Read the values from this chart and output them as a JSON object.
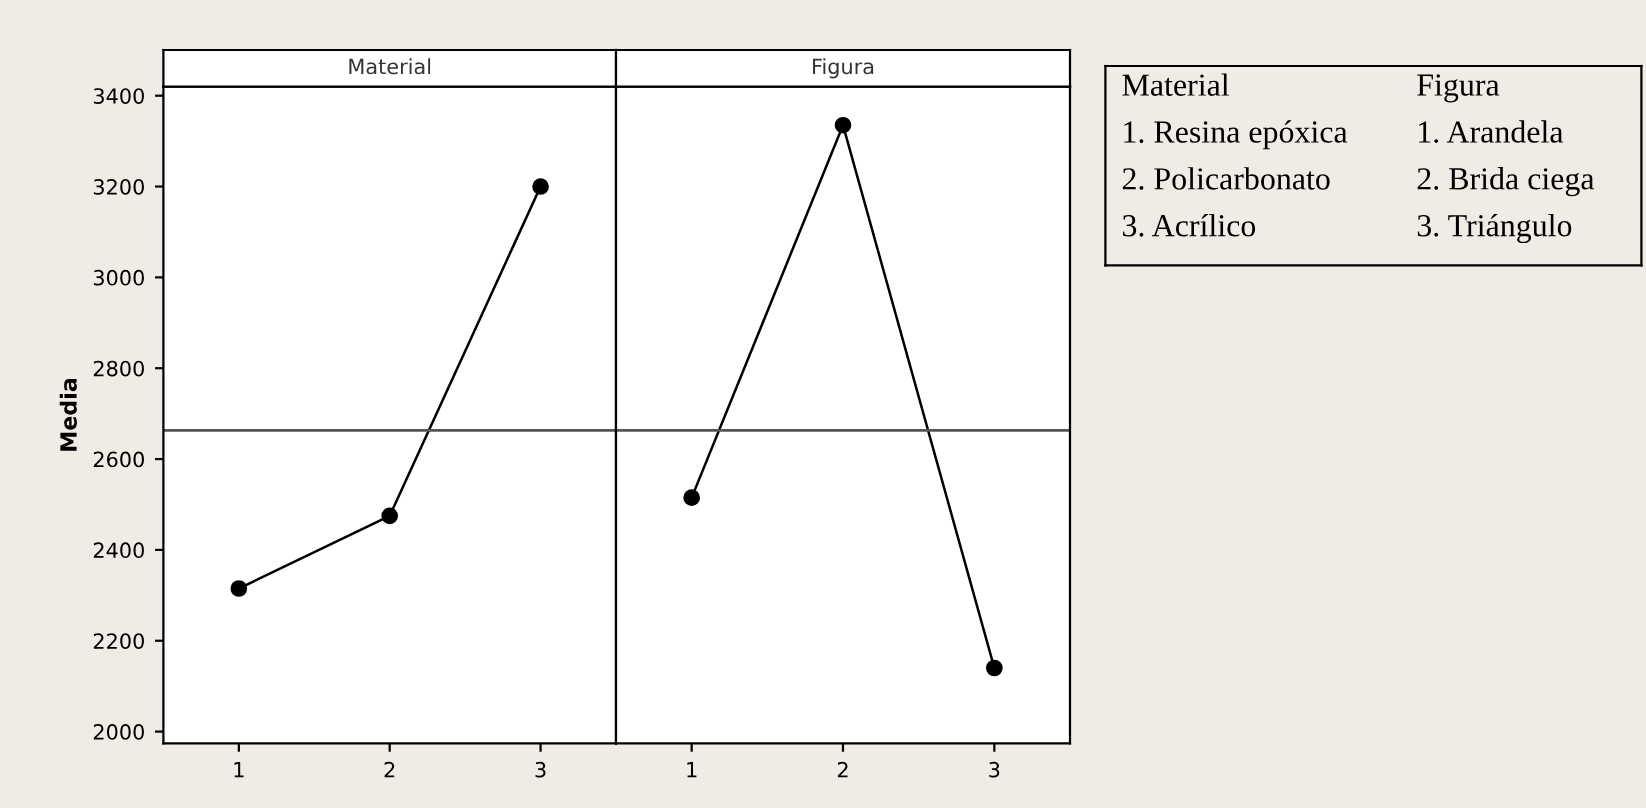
{
  "chart_data": [
    {
      "type": "line",
      "title": "Material",
      "ylabel": "Media",
      "categories": [
        "1",
        "2",
        "3"
      ],
      "series": [
        {
          "color": "#000000",
          "values": [
            2315,
            2475,
            3200
          ]
        }
      ],
      "ylim": [
        1974,
        3420
      ],
      "yticks": [
        2000,
        2200,
        2400,
        2600,
        2800,
        3000,
        3200,
        3400
      ],
      "ref_lines": [
        {
          "axis": "y",
          "value": 2663,
          "label": null,
          "color": "#555555"
        }
      ],
      "marker": "circle",
      "line_style": "solid",
      "grid": false
    },
    {
      "type": "line",
      "title": "Figura",
      "categories": [
        "1",
        "2",
        "3"
      ],
      "series": [
        {
          "color": "#000000",
          "values": [
            2515,
            3335,
            2140
          ]
        }
      ],
      "ylim": [
        1974,
        3420
      ],
      "tick_labels": "x",
      "ref_lines": [
        {
          "axis": "y",
          "value": 2663,
          "label": null,
          "color": "#555555"
        }
      ],
      "marker": "circle",
      "line_style": "solid",
      "grid": false
    },
    {
      "type": "other",
      "annotations": [
        "Material",
        "1. Resina epóxica",
        "2. Policarbonato",
        "3. Acrílico",
        "Figura",
        "1. Arandela",
        "2. Brida ciega",
        "3. Triángulo"
      ]
    }
  ]
}
